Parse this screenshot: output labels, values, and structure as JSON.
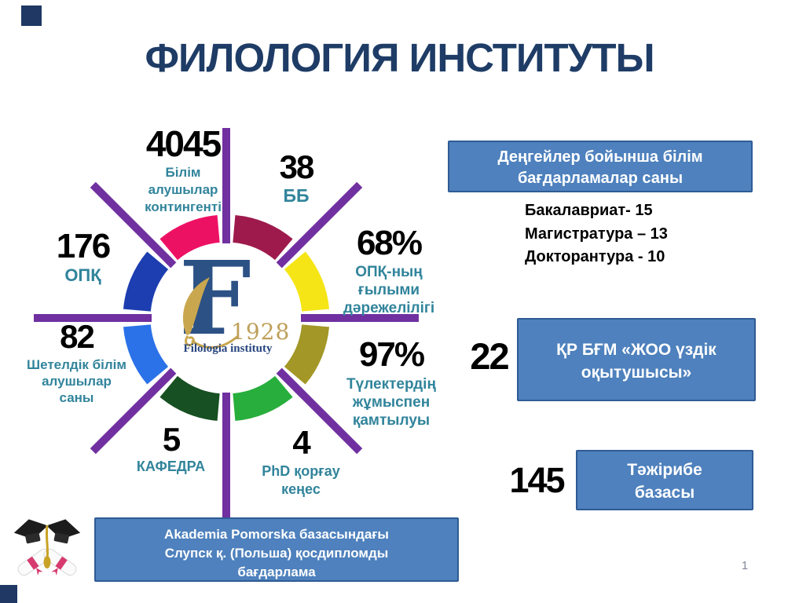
{
  "slide": {
    "title": "ФИЛОЛОГИЯ ИНСТИТУТЫ",
    "page_number": "1"
  },
  "logo": {
    "letter": "F",
    "year": "1928",
    "name": "Filologia instituty"
  },
  "ring": {
    "ray_color": "#7030A0",
    "segments": [
      {
        "name": "north-east",
        "color": "#9E1A4D",
        "start": 5,
        "end": 40
      },
      {
        "name": "east-upper",
        "color": "#F5E517",
        "start": 50,
        "end": 85
      },
      {
        "name": "east-lower",
        "color": "#A39727",
        "start": 95,
        "end": 130
      },
      {
        "name": "south-east",
        "color": "#27AE3C",
        "start": 140,
        "end": 175
      },
      {
        "name": "south-west",
        "color": "#175022",
        "start": 185,
        "end": 220
      },
      {
        "name": "west-lower",
        "color": "#2B72E8",
        "start": 230,
        "end": 265
      },
      {
        "name": "west-upper",
        "color": "#1C3EB0",
        "start": 275,
        "end": 310
      },
      {
        "name": "north-west",
        "color": "#ED1164",
        "start": 320,
        "end": 355
      }
    ],
    "rays": [
      {
        "angle": 0,
        "inner": 95,
        "outer": 242
      },
      {
        "angle": 45,
        "inner": 95,
        "outer": 240
      },
      {
        "angle": 90,
        "inner": 95,
        "outer": 245
      },
      {
        "angle": 135,
        "inner": 95,
        "outer": 240
      },
      {
        "angle": 180,
        "inner": 95,
        "outer": 257
      },
      {
        "angle": 225,
        "inner": 95,
        "outer": 240
      },
      {
        "angle": 270,
        "inner": 95,
        "outer": 245
      },
      {
        "angle": 315,
        "inner": 95,
        "outer": 240
      }
    ],
    "stats": [
      {
        "value": "4045",
        "label": "Білім\nалушылар\nконтингенті"
      },
      {
        "value": "38",
        "label": "ББ"
      },
      {
        "value": "68%",
        "label": "ОПҚ-ның\nғылыми\nдәрежелілігі"
      },
      {
        "value": "97%",
        "label": "Түлектердің\nжұмыспен\nқамтылуы"
      },
      {
        "value": "4",
        "label": "PhD қорғау\nкеңес"
      },
      {
        "value": "5",
        "label": "КАФЕДРА"
      },
      {
        "value": "82",
        "label": "Шетелдік білім\nалушылар\nсаны"
      },
      {
        "value": "176",
        "label": "ОПҚ"
      }
    ]
  },
  "right_panel": {
    "levels_box_title": "Деңгейлер бойынша білім бағдарламалар саны",
    "levels_list": "Бакалавриат- 15\nМагистратура – 13\nДокторантура - 10",
    "teachers_value": "22",
    "teachers_label": "ҚР БҒМ «ЖОО үздік оқытушысы»",
    "practice_value": "145",
    "practice_label": "Тәжірибе\nбазасы"
  },
  "bottom_box": {
    "text": "Akademia Pomorska  базасындағы\nСлупск қ. (Польша) қосдипломды\nбағдарлама"
  },
  "colors": {
    "title_navy": "#1E3C66",
    "label_teal": "#31849B",
    "box_fill_blue": "#4E81BD",
    "box_border_blue": "#2F5B94",
    "ray_purple": "#7030A0",
    "logo_navy": "#2C5185",
    "logo_gold": "#BFA05A",
    "corner_navy": "#1F3864"
  }
}
